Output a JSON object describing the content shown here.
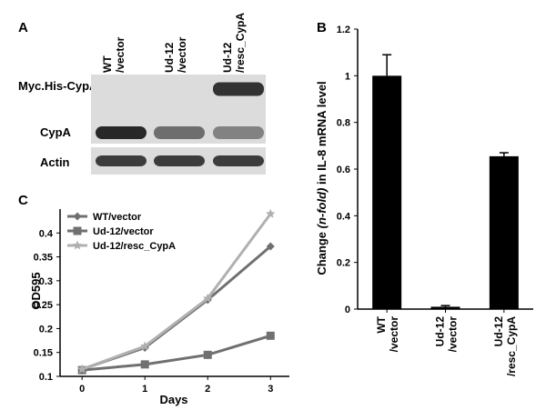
{
  "panel_a": {
    "letter": "A",
    "lanes": [
      {
        "line1": "WT",
        "line2": "/vector"
      },
      {
        "line1": "Ud-12",
        "line2": "/vector"
      },
      {
        "line1": "Ud-12",
        "line2": "/resc_CypA"
      }
    ],
    "rows": [
      "Myc.His-CypA",
      "CypA",
      "Actin"
    ],
    "band_intensity": {
      "Myc.His-CypA": [
        0,
        0,
        0.85
      ],
      "CypA": [
        0.9,
        0.55,
        0.45
      ],
      "Actin": [
        0.8,
        0.8,
        0.8
      ]
    }
  },
  "chart_data": [
    {
      "panel": "B",
      "type": "bar",
      "ylabel_pre": "Change ",
      "ylabel_italic": "(n-fold)",
      "ylabel_post": " in IL-8 mRNA level",
      "ylim": [
        0,
        1.2
      ],
      "yticks": [
        "0",
        "0.2",
        "0.4",
        "0.6",
        "0.8",
        "1",
        "1.2"
      ],
      "categories": [
        {
          "line1": "WT",
          "line2": "/vector"
        },
        {
          "line1": "Ud-12",
          "line2": "/vector"
        },
        {
          "line1": "Ud-12",
          "line2": "/resc_CypA"
        }
      ],
      "values": [
        1.0,
        0.01,
        0.655
      ],
      "errors": [
        0.09,
        0.005,
        0.015
      ],
      "color": "#000000"
    },
    {
      "panel": "C",
      "type": "line",
      "xlabel": "Days",
      "ylabel": "OD595",
      "x": [
        0,
        1,
        2,
        3
      ],
      "xticks": [
        "0",
        "1",
        "2",
        "3"
      ],
      "ylim": [
        0.1,
        0.45
      ],
      "yticks": [
        "0.1",
        "0.15",
        "0.2",
        "0.25",
        "0.3",
        "0.35",
        "0.4"
      ],
      "legend_position": "top-left",
      "series": [
        {
          "name": "WT/vector",
          "values": [
            0.115,
            0.16,
            0.26,
            0.372
          ],
          "color": "#707070",
          "marker": "diamond"
        },
        {
          "name": "Ud-12/vector",
          "values": [
            0.113,
            0.125,
            0.145,
            0.185
          ],
          "color": "#707070",
          "marker": "square"
        },
        {
          "name": "Ud-12/resc_CypA",
          "values": [
            0.115,
            0.163,
            0.263,
            0.44
          ],
          "color": "#b0b0b0",
          "marker": "star"
        }
      ]
    }
  ]
}
